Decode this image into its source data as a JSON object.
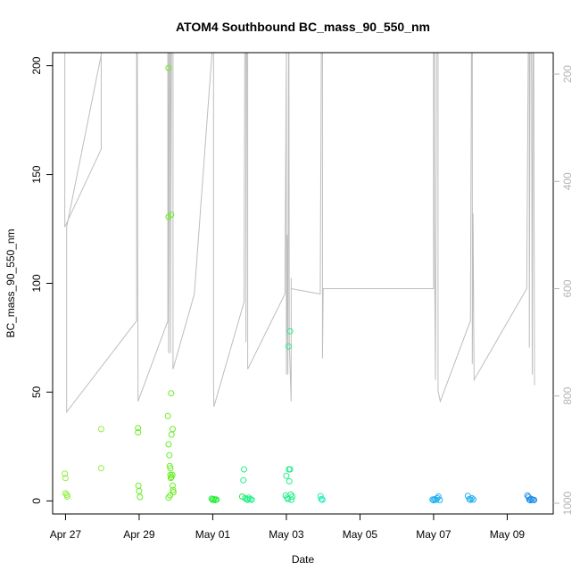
{
  "chart_data": {
    "type": "scatter",
    "title": "ATOM4 Southbound BC_mass_90_550_nm",
    "xlabel": "Date",
    "ylabel": "BC_mass_90_550_nm",
    "x_ticks": [
      "Apr 27",
      "Apr 29",
      "May 01",
      "May 03",
      "May 05",
      "May 07",
      "May 09"
    ],
    "x_tick_values": [
      0,
      2,
      4,
      6,
      8,
      10,
      12
    ],
    "xlim": [
      -0.35,
      13.25
    ],
    "y_ticks": [
      "0",
      "50",
      "100",
      "150",
      "200"
    ],
    "y_tick_values": [
      0,
      50,
      100,
      150,
      200
    ],
    "ylim": [
      -6,
      206
    ],
    "y2_ticks": [
      "200",
      "400",
      "600",
      "800",
      "1000"
    ],
    "y2_tick_values": [
      200,
      400,
      600,
      800,
      1000
    ],
    "y2lim": [
      1020,
      160
    ],
    "colors": {
      "axis": "#000000",
      "pressure_line": "#bdbdbd",
      "right_axis": "#b4b4b4",
      "point_palette": [
        "#90ee40",
        "#66ee22",
        "#22ee33",
        "#22ee88",
        "#22eebb",
        "#22e4ee",
        "#22b0ee",
        "#1f8fe8"
      ]
    },
    "series": [
      {
        "points": [
          {
            "x": -0.02,
            "y": 12.5
          },
          {
            "x": 0.0,
            "y": 10.5
          },
          {
            "x": 0.0,
            "y": 3.5
          },
          {
            "x": 0.03,
            "y": 2.8
          },
          {
            "x": 0.05,
            "y": 2.0
          },
          {
            "x": 0.97,
            "y": 33
          },
          {
            "x": 0.97,
            "y": 15
          },
          {
            "x": 1.97,
            "y": 33.5
          },
          {
            "x": 1.97,
            "y": 31.5
          },
          {
            "x": 1.98,
            "y": 7
          },
          {
            "x": 2.0,
            "y": 4.5
          },
          {
            "x": 2.02,
            "y": 1.8
          },
          {
            "x": 2.8,
            "y": 199
          },
          {
            "x": 2.78,
            "y": 39
          },
          {
            "x": 2.8,
            "y": 26
          },
          {
            "x": 2.82,
            "y": 21
          },
          {
            "x": 2.83,
            "y": 16
          },
          {
            "x": 2.85,
            "y": 15
          },
          {
            "x": 2.85,
            "y": 12
          },
          {
            "x": 2.86,
            "y": 10.5
          },
          {
            "x": 2.8,
            "y": 130.5
          },
          {
            "x": 2.87,
            "y": 131.5
          },
          {
            "x": 2.87,
            "y": 49.5
          },
          {
            "x": 2.88,
            "y": 30.5
          },
          {
            "x": 2.91,
            "y": 33
          },
          {
            "x": 2.88,
            "y": 11
          },
          {
            "x": 2.9,
            "y": 12
          },
          {
            "x": 2.91,
            "y": 7
          },
          {
            "x": 2.92,
            "y": 5
          },
          {
            "x": 2.93,
            "y": 4
          },
          {
            "x": 2.8,
            "y": 1.5
          },
          {
            "x": 2.84,
            "y": 2.5
          },
          {
            "x": 3.97,
            "y": 1.0
          },
          {
            "x": 4.0,
            "y": 0.5
          },
          {
            "x": 4.03,
            "y": 0.8
          },
          {
            "x": 4.07,
            "y": 0.4
          },
          {
            "x": 4.1,
            "y": 0.6
          },
          {
            "x": 4.85,
            "y": 14.5
          },
          {
            "x": 4.83,
            "y": 9.5
          },
          {
            "x": 4.8,
            "y": 2.0
          },
          {
            "x": 4.88,
            "y": 1.2
          },
          {
            "x": 4.92,
            "y": 0.8
          },
          {
            "x": 4.95,
            "y": 0.5
          },
          {
            "x": 4.98,
            "y": 1.5
          },
          {
            "x": 5.02,
            "y": 0.8
          },
          {
            "x": 5.06,
            "y": 0.5
          },
          {
            "x": 6.0,
            "y": 11.5
          },
          {
            "x": 6.07,
            "y": 14.5
          },
          {
            "x": 6.1,
            "y": 14.5
          },
          {
            "x": 6.08,
            "y": 9.0
          },
          {
            "x": 6.1,
            "y": 78
          },
          {
            "x": 6.06,
            "y": 71
          },
          {
            "x": 5.98,
            "y": 2.5
          },
          {
            "x": 6.02,
            "y": 1.5
          },
          {
            "x": 6.12,
            "y": 3.0
          },
          {
            "x": 6.16,
            "y": 2.0
          },
          {
            "x": 6.04,
            "y": 0.8
          },
          {
            "x": 6.14,
            "y": 0.5
          },
          {
            "x": 6.93,
            "y": 2.2
          },
          {
            "x": 6.95,
            "y": 0.8
          },
          {
            "x": 6.98,
            "y": 0.5
          },
          {
            "x": 9.97,
            "y": 0.6
          },
          {
            "x": 10.0,
            "y": 0.3
          },
          {
            "x": 10.03,
            "y": 0.8
          },
          {
            "x": 10.07,
            "y": 0.5
          },
          {
            "x": 10.1,
            "y": 1.2
          },
          {
            "x": 10.13,
            "y": 2.0
          },
          {
            "x": 10.17,
            "y": 0.4
          },
          {
            "x": 10.93,
            "y": 2.3
          },
          {
            "x": 10.97,
            "y": 0.8
          },
          {
            "x": 11.0,
            "y": 0.5
          },
          {
            "x": 11.04,
            "y": 1.2
          },
          {
            "x": 11.08,
            "y": 0.6
          },
          {
            "x": 12.55,
            "y": 2.5
          },
          {
            "x": 12.58,
            "y": 1.8
          },
          {
            "x": 12.6,
            "y": 0.6
          },
          {
            "x": 12.63,
            "y": 0.3
          },
          {
            "x": 12.66,
            "y": 0.8
          },
          {
            "x": 12.7,
            "y": 0.5
          },
          {
            "x": 12.73,
            "y": 0.4
          }
        ]
      },
      {
        "axis": "right",
        "line": [
          [
            -0.02,
            160
          ],
          [
            -0.02,
            485
          ],
          [
            0.97,
            340
          ],
          [
            0.97,
            160
          ],
          [
            0.98,
            160
          ],
          [
            0.03,
            485
          ],
          [
            0.03,
            830
          ],
          [
            1.93,
            660
          ],
          [
            1.93,
            160
          ],
          [
            1.95,
            160
          ],
          [
            1.97,
            810
          ],
          [
            2.78,
            660
          ],
          [
            2.78,
            160
          ],
          [
            2.8,
            160
          ],
          [
            2.8,
            720
          ],
          [
            2.83,
            160
          ],
          [
            2.85,
            160
          ],
          [
            2.85,
            720
          ],
          [
            2.88,
            160
          ],
          [
            2.92,
            160
          ],
          [
            2.92,
            750
          ],
          [
            3.5,
            610
          ],
          [
            3.98,
            160
          ],
          [
            4.02,
            160
          ],
          [
            4.02,
            780
          ],
          [
            4.03,
            820
          ],
          [
            4.85,
            625
          ],
          [
            4.87,
            160
          ],
          [
            4.9,
            160
          ],
          [
            4.9,
            700
          ],
          [
            4.92,
            160
          ],
          [
            4.95,
            160
          ],
          [
            4.95,
            750
          ],
          [
            5.96,
            610
          ],
          [
            6.0,
            160
          ],
          [
            6.0,
            760
          ],
          [
            6.02,
            500
          ],
          [
            6.04,
            760
          ],
          [
            6.06,
            160
          ],
          [
            6.07,
            160
          ],
          [
            6.08,
            700
          ],
          [
            6.13,
            810
          ],
          [
            6.13,
            580
          ],
          [
            6.13,
            600
          ],
          [
            6.92,
            610
          ],
          [
            6.95,
            160
          ],
          [
            6.98,
            160
          ],
          [
            6.98,
            730
          ],
          [
            7.0,
            600
          ],
          [
            10.0,
            600
          ],
          [
            10.0,
            160
          ],
          [
            10.02,
            160
          ],
          [
            10.02,
            480
          ],
          [
            10.05,
            770
          ],
          [
            10.08,
            160
          ],
          [
            10.12,
            160
          ],
          [
            10.12,
            790
          ],
          [
            10.18,
            810
          ],
          [
            11.0,
            660
          ],
          [
            11.03,
            160
          ],
          [
            11.05,
            160
          ],
          [
            11.05,
            740
          ],
          [
            11.07,
            460
          ],
          [
            11.1,
            770
          ],
          [
            12.53,
            600
          ],
          [
            12.57,
            160
          ],
          [
            12.6,
            160
          ],
          [
            12.6,
            710
          ],
          [
            12.62,
            160
          ],
          [
            12.66,
            160
          ],
          [
            12.68,
            760
          ],
          [
            12.7,
            160
          ],
          [
            12.72,
            160
          ],
          [
            12.74,
            780
          ]
        ]
      }
    ],
    "grid": false,
    "legend": "none"
  }
}
